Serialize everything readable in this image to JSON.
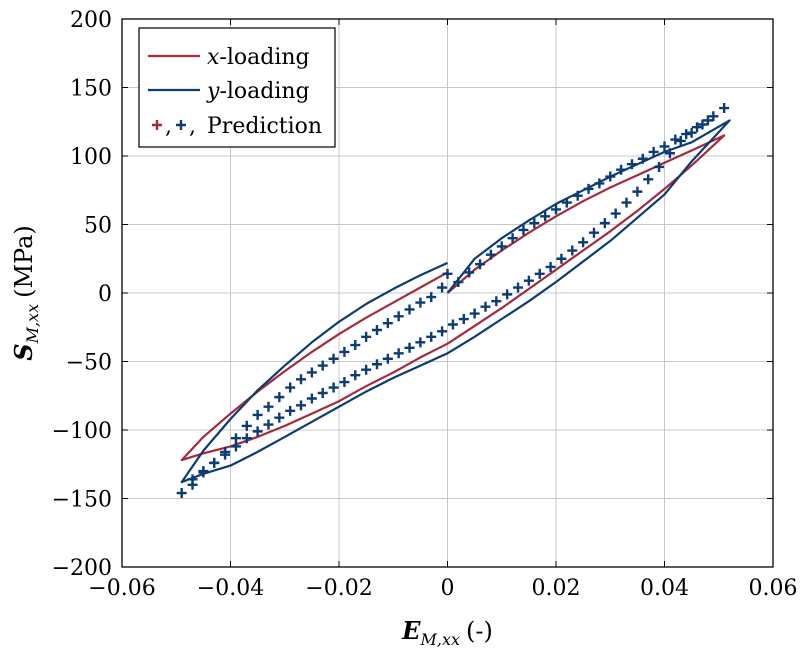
{
  "chart_data": {
    "type": "line",
    "xlabel": "E_{M,xx} (-)",
    "xlabel_parts": {
      "main": "E",
      "sub": "M,xx",
      "unit": "(-)"
    },
    "ylabel": "S_{M,xx} (MPa)",
    "ylabel_parts": {
      "main": "S",
      "sub": "M,xx",
      "unit": "(MPa)"
    },
    "xlim": [
      -0.06,
      0.06
    ],
    "ylim": [
      -200,
      200
    ],
    "xticks": [
      -0.06,
      -0.04,
      -0.02,
      0,
      0.02,
      0.04,
      0.06
    ],
    "xtick_labels": [
      "−0.06",
      "−0.04",
      "−0.02",
      "0",
      "0.02",
      "0.04",
      "0.06"
    ],
    "yticks": [
      -200,
      -150,
      -100,
      -50,
      0,
      50,
      100,
      150,
      200
    ],
    "ytick_labels": [
      "−200",
      "−150",
      "−100",
      "−50",
      "0",
      "50",
      "100",
      "150",
      "200"
    ],
    "grid": true,
    "legend_position": "top-left",
    "legend": [
      {
        "label": "x-loading",
        "var": "x",
        "rest": "-loading",
        "kind": "line",
        "color": "#A52A3C"
      },
      {
        "label": "y-loading",
        "var": "y",
        "rest": "-loading",
        "kind": "line",
        "color": "#0B3C73"
      },
      {
        "label": "+, +, Prediction",
        "kind": "markers",
        "text": "Prediction",
        "colors": [
          "#A52A3C",
          "#0B3C73"
        ]
      }
    ],
    "series": [
      {
        "name": "x-loading",
        "color": "#A52A3C",
        "kind": "line",
        "x": [
          0,
          0.005,
          0.01,
          0.015,
          0.02,
          0.025,
          0.03,
          0.035,
          0.04,
          0.045,
          0.051,
          0.045,
          0.04,
          0.035,
          0.03,
          0.025,
          0.02,
          0.015,
          0.01,
          0.005,
          0,
          -0.005,
          -0.01,
          -0.015,
          -0.02,
          -0.025,
          -0.03,
          -0.035,
          -0.04,
          -0.045,
          -0.049,
          -0.045,
          -0.04,
          -0.035,
          -0.03,
          -0.025,
          -0.02,
          -0.015,
          -0.01,
          -0.005,
          0
        ],
        "y": [
          0,
          17,
          31,
          44,
          56,
          67,
          77,
          86,
          95,
          104,
          115,
          93,
          76,
          60,
          45,
          31,
          17,
          3,
          -11,
          -24,
          -37,
          -47,
          -58,
          -68,
          -79,
          -88,
          -97,
          -105,
          -112,
          -117,
          -122,
          -105,
          -88,
          -72,
          -57,
          -43,
          -30,
          -18,
          -7,
          4,
          15
        ]
      },
      {
        "name": "y-loading",
        "color": "#0B3C73",
        "kind": "line",
        "x": [
          0,
          0.005,
          0.01,
          0.015,
          0.02,
          0.025,
          0.03,
          0.035,
          0.04,
          0.045,
          0.052,
          0.045,
          0.04,
          0.035,
          0.03,
          0.025,
          0.02,
          0.015,
          0.01,
          0.005,
          0,
          -0.005,
          -0.01,
          -0.015,
          -0.02,
          -0.025,
          -0.03,
          -0.035,
          -0.04,
          -0.045,
          -0.049,
          -0.045,
          -0.04,
          -0.035,
          -0.03,
          -0.025,
          -0.02,
          -0.015,
          -0.01,
          -0.005,
          0
        ],
        "y": [
          0,
          25,
          40,
          53,
          65,
          75,
          85,
          94,
          103,
          110,
          126,
          96,
          72,
          55,
          38,
          23,
          8,
          -6,
          -19,
          -32,
          -44,
          -53,
          -62,
          -72,
          -83,
          -94,
          -105,
          -116,
          -126,
          -132,
          -138,
          -115,
          -92,
          -71,
          -53,
          -36,
          -21,
          -8,
          3,
          13,
          22
        ]
      },
      {
        "name": "Prediction",
        "color": "#0B3C73",
        "kind": "markers",
        "x": [
          -0.049,
          -0.047,
          -0.045,
          -0.043,
          -0.041,
          -0.039,
          -0.037,
          -0.035,
          -0.033,
          -0.031,
          -0.029,
          -0.027,
          -0.025,
          -0.023,
          -0.021,
          -0.019,
          -0.017,
          -0.015,
          -0.013,
          -0.011,
          -0.009,
          -0.007,
          -0.005,
          -0.003,
          -0.001,
          0.001,
          0.003,
          0.005,
          0.007,
          0.009,
          0.011,
          0.013,
          0.015,
          0.017,
          0.019,
          0.021,
          0.023,
          0.025,
          0.027,
          0.029,
          0.031,
          0.033,
          0.035,
          0.037,
          0.039,
          0.041,
          0.043,
          0.045,
          0.047,
          0.049,
          0.051,
          -0.047,
          -0.045,
          -0.043,
          -0.041,
          -0.039,
          -0.037,
          -0.035,
          -0.033,
          -0.031,
          -0.029,
          -0.027,
          -0.025,
          -0.023,
          -0.021,
          -0.019,
          -0.017,
          -0.015,
          -0.013,
          -0.011,
          -0.009,
          -0.007,
          -0.005,
          -0.003,
          -0.001,
          0,
          0.002,
          0.004,
          0.006,
          0.008,
          0.01,
          0.012,
          0.014,
          0.016,
          0.018,
          0.02,
          0.022,
          0.024,
          0.026,
          0.028,
          0.03,
          0.032,
          0.034,
          0.036,
          0.038,
          0.04,
          0.042,
          0.044,
          0.046,
          0.048
        ],
        "y": [
          -146,
          -136,
          -130,
          -124,
          -118,
          -112,
          -106,
          -101,
          -96,
          -91,
          -86,
          -82,
          -77,
          -73,
          -69,
          -65,
          -60,
          -56,
          -52,
          -48,
          -44,
          -40,
          -36,
          -32,
          -28,
          -23,
          -19,
          -15,
          -10,
          -6,
          -1,
          4,
          9,
          14,
          19,
          25,
          31,
          37,
          44,
          51,
          58,
          66,
          74,
          83,
          92,
          102,
          111,
          117,
          123,
          129,
          135,
          -140,
          -131,
          -124,
          -116,
          -106,
          -97,
          -89,
          -83,
          -76,
          -69,
          -63,
          -58,
          -53,
          -48,
          -43,
          -38,
          -32,
          -27,
          -22,
          -17,
          -12,
          -7,
          -3,
          4,
          14,
          8,
          15,
          21,
          28,
          34,
          40,
          46,
          51,
          56,
          61,
          66,
          71,
          76,
          80,
          85,
          90,
          94,
          98,
          103,
          107,
          112,
          116,
          121,
          126
        ]
      }
    ]
  }
}
